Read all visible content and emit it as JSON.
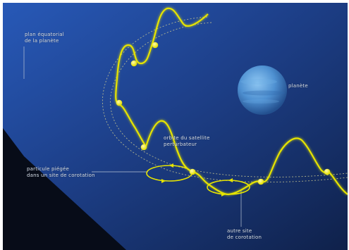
{
  "labels": {
    "plan_line1": "plan équatorial",
    "plan_line2": "de la planète",
    "planete": "planète",
    "orbite_line1": "orbite du satellite",
    "orbite_line2": "perturbateur",
    "particule_line1": "particule piégée",
    "particule_line2": "dans un site de corotation",
    "autre_line1": "autre site",
    "autre_line2": "de corotation"
  },
  "colors": {
    "space": "#0b1426",
    "plane": "#1d3c86",
    "curve": "#e6e400",
    "planet": "#5a9edb",
    "label_text": "#d9e2ee"
  },
  "icons": {
    "planet": "planet-sphere-icon",
    "particle": "yellow-dot-icon",
    "flow_arrow": "arrowhead-icon"
  }
}
